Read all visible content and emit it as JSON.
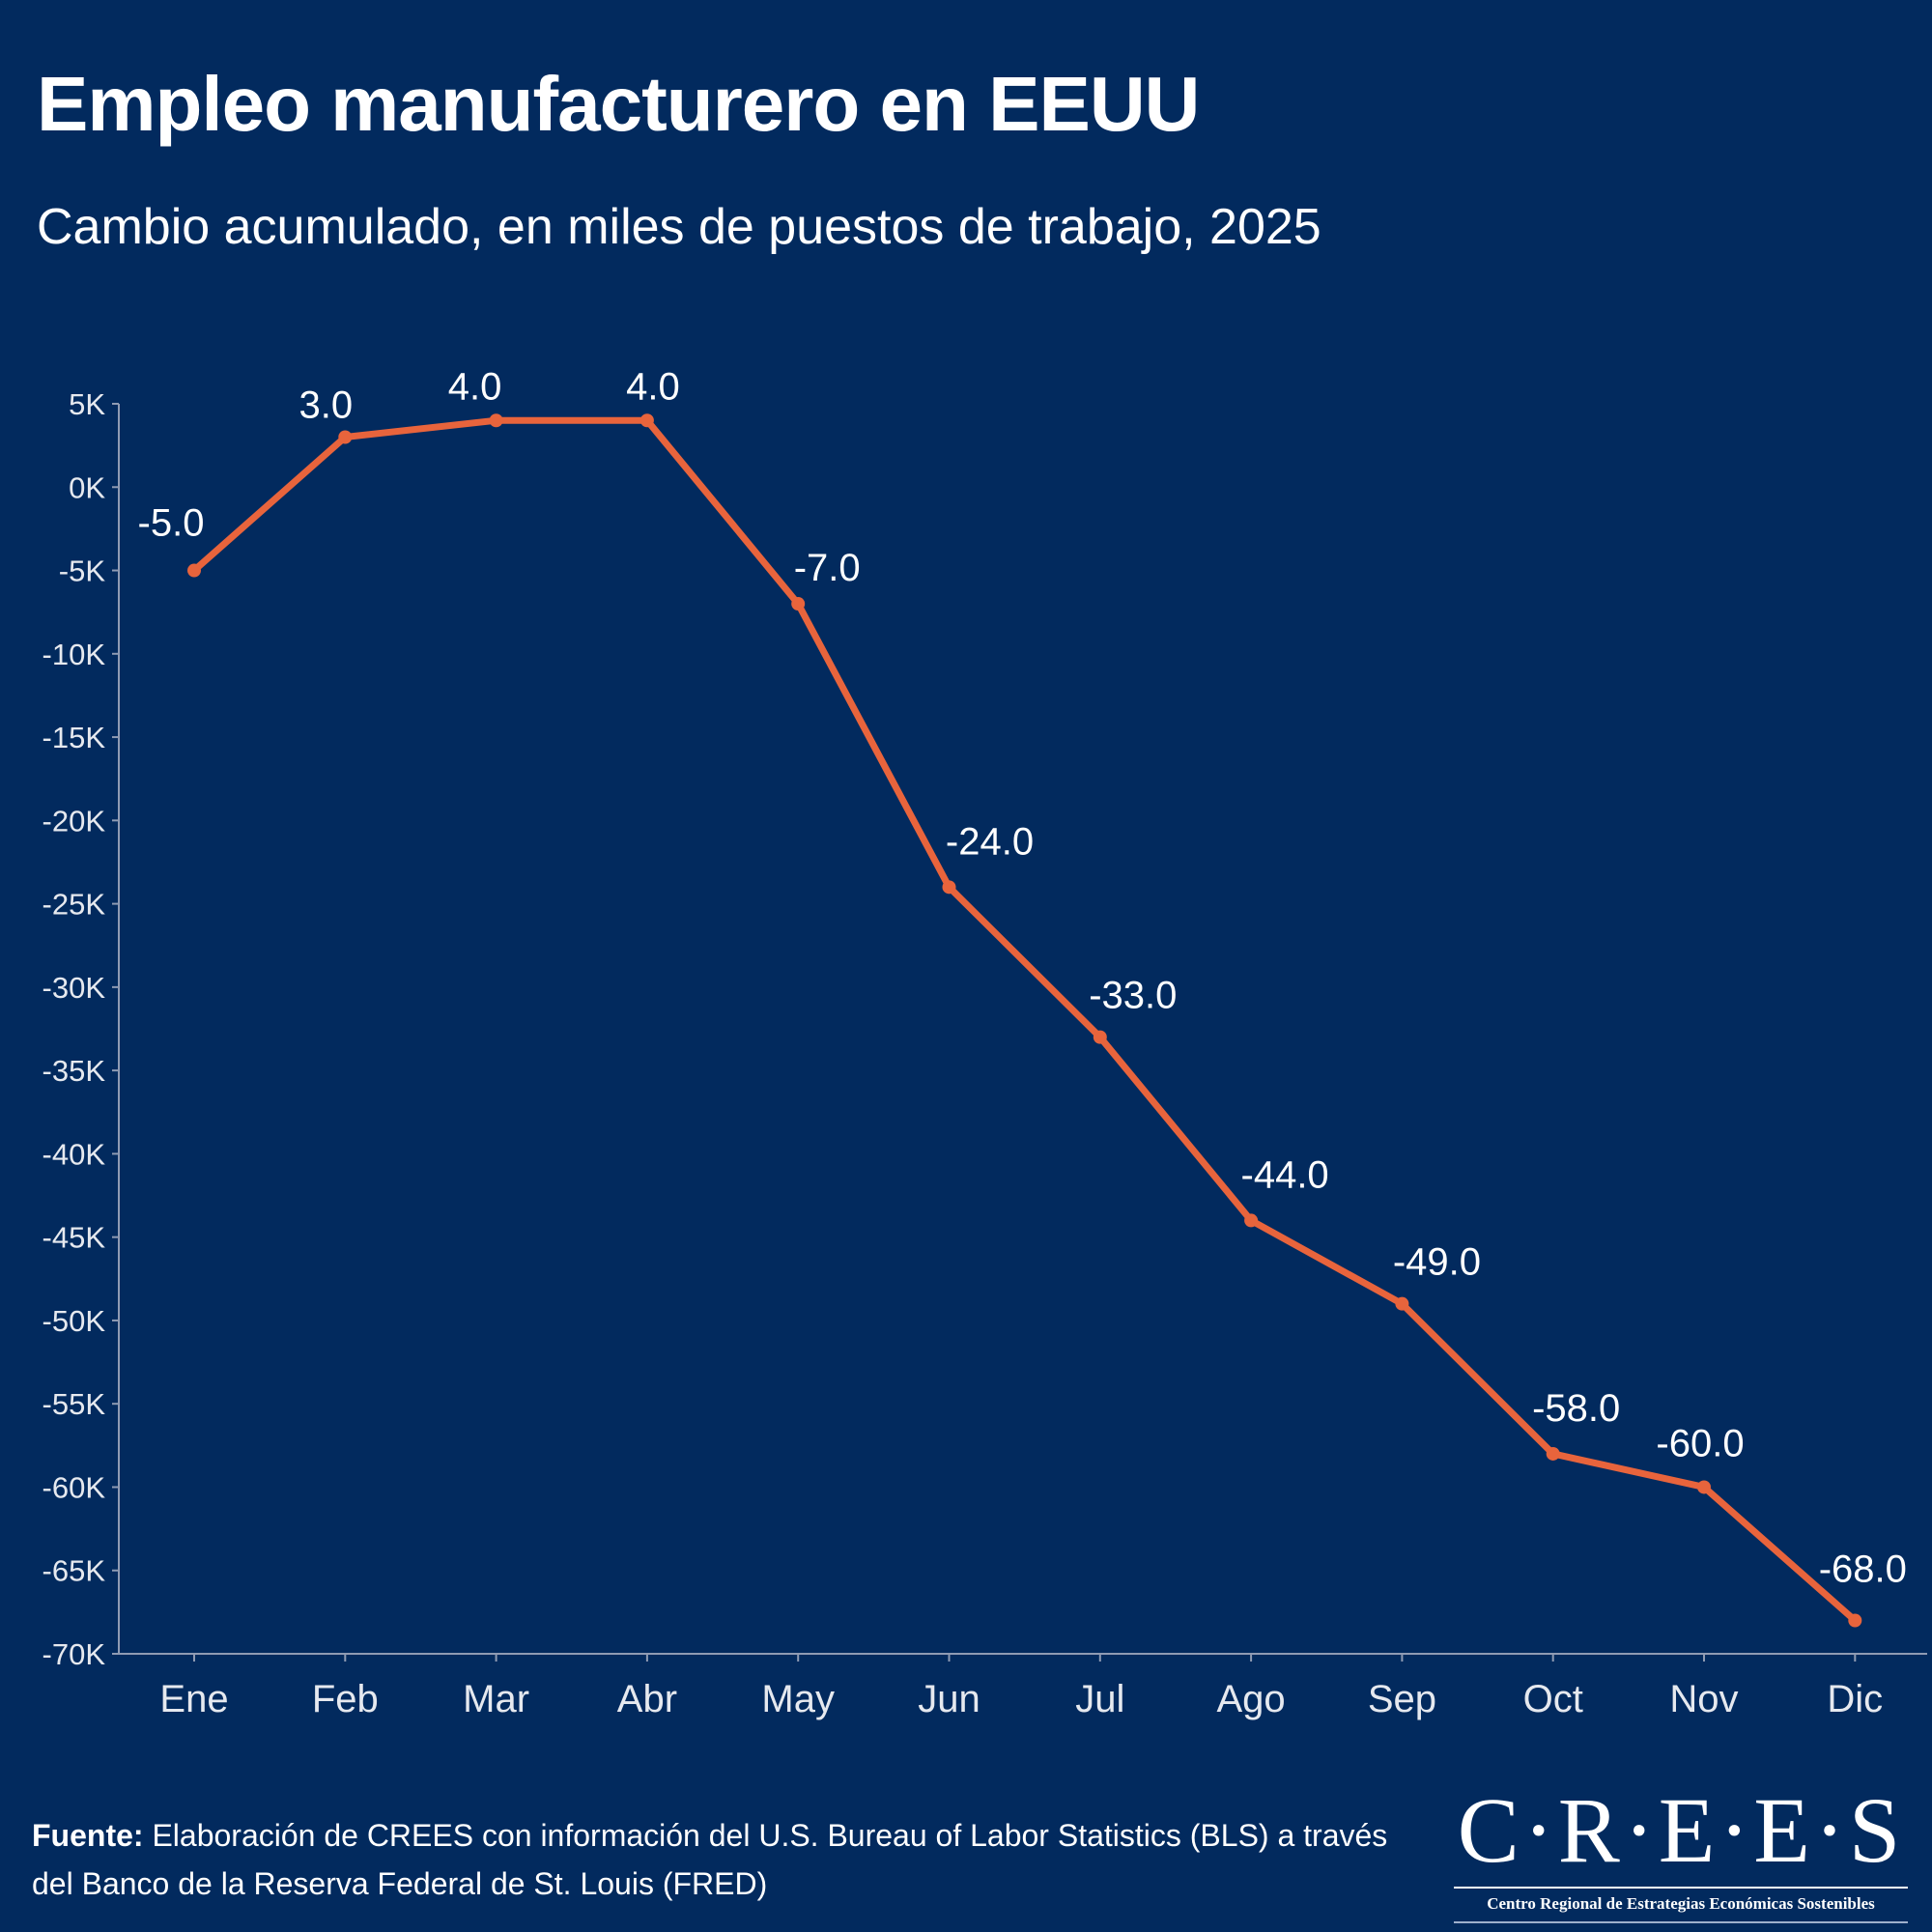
{
  "chart_data": {
    "type": "line",
    "title": "Empleo manufacturero en EEUU",
    "subtitle": "Cambio acumulado, en miles de puestos de trabajo, 2025",
    "categories": [
      "Ene",
      "Feb",
      "Mar",
      "Abr",
      "May",
      "Jun",
      "Jul",
      "Ago",
      "Sep",
      "Oct",
      "Nov",
      "Dic"
    ],
    "values": [
      -5.0,
      3.0,
      4.0,
      4.0,
      -7.0,
      -24.0,
      -33.0,
      -44.0,
      -49.0,
      -58.0,
      -60.0,
      -68.0
    ],
    "data_labels": [
      "-5.0",
      "3.0",
      "4.0",
      "4.0",
      "-7.0",
      "-24.0",
      "-33.0",
      "-44.0",
      "-49.0",
      "-58.0",
      "-60.0",
      "-68.0"
    ],
    "y_ticks": [
      5,
      0,
      -5,
      -10,
      -15,
      -20,
      -25,
      -30,
      -35,
      -40,
      -45,
      -50,
      -55,
      -60,
      -65,
      -70
    ],
    "y_tick_labels": [
      "5K",
      "0K",
      "-5K",
      "-10K",
      "-15K",
      "-20K",
      "-25K",
      "-30K",
      "-35K",
      "-40K",
      "-45K",
      "-50K",
      "-55K",
      "-60K",
      "-65K",
      "-70K"
    ],
    "ylim": [
      -70,
      5
    ],
    "xlabel": "",
    "ylabel": "",
    "grid": false,
    "line_color": "#e8643c"
  },
  "footer": {
    "source_label": "Fuente:",
    "source_text": " Elaboración de CREES con información del U.S. Bureau of Labor Statistics (BLS) a través del Banco de la Reserva Federal de St. Louis (FRED)"
  },
  "logo": {
    "main": "C·R·E·E·S",
    "sub": "Centro Regional de Estrategias Económicas Sostenibles"
  },
  "colors": {
    "background": "#022a5e",
    "text": "#ffffff",
    "axis": "#8f9bb3"
  }
}
